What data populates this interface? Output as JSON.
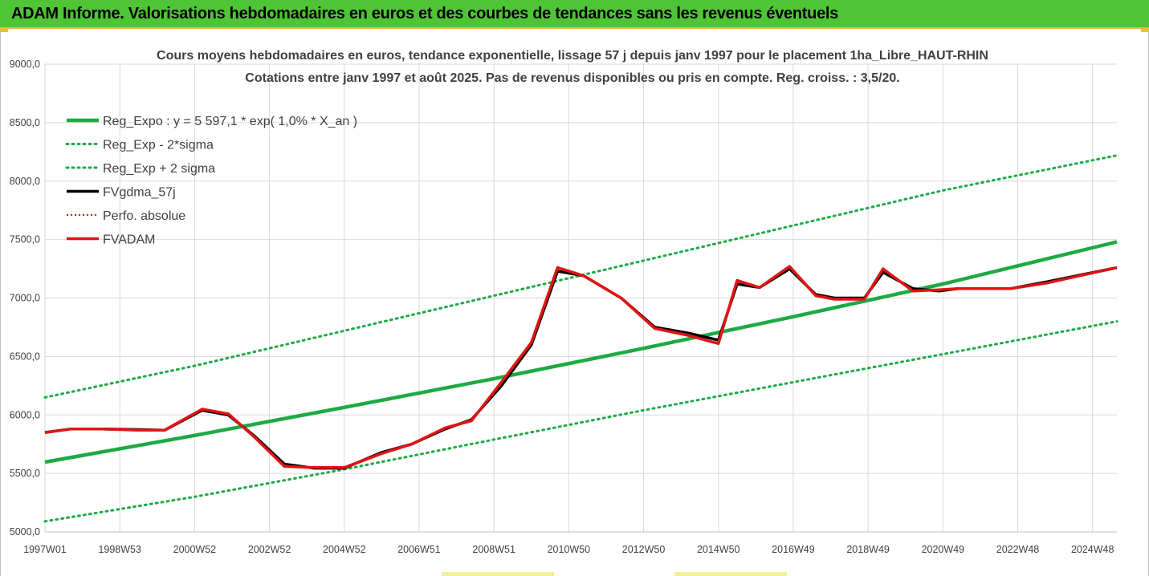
{
  "header": {
    "title": "ADAM Informe. Valorisations hebdomadaires en euros et des courbes de tendances sans les revenus éventuels"
  },
  "colors": {
    "banner": "#4fc436",
    "trend": "#1daa45",
    "sigma": "#1daa45",
    "fvgdma": "#000000",
    "perfo": "#ff0000",
    "fvadam": "#e01414",
    "grid": "#d9d9d9"
  },
  "chart_data": {
    "type": "line",
    "title": "Cours moyens hebdomadaires en euros, tendance exponentielle, lissage 57 j depuis janv 1997 pour le placement 1ha_Libre_HAUT-RHIN",
    "subtitle": "Cotations entre janv 1997 et août 2025. Pas de revenus disponibles ou pris en compte. Reg. croiss. : 3,5/20.",
    "xlabel": "",
    "ylabel": "",
    "x_start": 1997.0,
    "x_end": 2025.65,
    "x_ticks": [
      {
        "x": 1997.0,
        "label": "1997W01"
      },
      {
        "x": 1999.0,
        "label": "1998W53"
      },
      {
        "x": 2001.0,
        "label": "2000W52"
      },
      {
        "x": 2003.0,
        "label": "2002W52"
      },
      {
        "x": 2005.0,
        "label": "2004W52"
      },
      {
        "x": 2007.0,
        "label": "2006W51"
      },
      {
        "x": 2009.0,
        "label": "2008W51"
      },
      {
        "x": 2011.0,
        "label": "2010W50"
      },
      {
        "x": 2013.0,
        "label": "2012W50"
      },
      {
        "x": 2015.0,
        "label": "2014W50"
      },
      {
        "x": 2017.0,
        "label": "2016W49"
      },
      {
        "x": 2019.0,
        "label": "2018W49"
      },
      {
        "x": 2021.0,
        "label": "2020W49"
      },
      {
        "x": 2023.0,
        "label": "2022W48"
      },
      {
        "x": 2025.0,
        "label": "2024W48"
      }
    ],
    "y_ticks": [
      5000,
      5500,
      6000,
      6500,
      7000,
      7500,
      8000,
      8500,
      9000
    ],
    "y_tick_labels": [
      "5000,0",
      "5500,0",
      "6000,0",
      "6500,0",
      "7000,0",
      "7500,0",
      "8000,0",
      "8500,0",
      "9000,0"
    ],
    "ylim": [
      5000,
      9000
    ],
    "grid": true,
    "legend_position": "top-left",
    "legend": [
      {
        "key": "reg_expo",
        "label": "Reg_Expo : y = 5 597,1 * exp( 1,0% *  X_an )",
        "style": "solid-thick"
      },
      {
        "key": "reg_minus",
        "label": "Reg_Exp - 2*sigma",
        "style": "dotted"
      },
      {
        "key": "reg_plus",
        "label": "Reg_Exp + 2 sigma",
        "style": "dotted"
      },
      {
        "key": "fvgdma",
        "label": "FVgdma_57j",
        "style": "solid"
      },
      {
        "key": "perfo",
        "label": "Perfo. absolue",
        "style": "dotted"
      },
      {
        "key": "fvadam",
        "label": "FVADAM",
        "style": "solid-thick"
      }
    ],
    "series": [
      {
        "key": "reg_expo",
        "name": "Reg_Expo : y = 5 597,1 * exp( 1,0% *  X_an )",
        "x": [
          1997.0,
          2001.0,
          2005.0,
          2009.0,
          2013.0,
          2017.0,
          2021.0,
          2025.65
        ],
        "y": [
          5597,
          5825,
          6065,
          6310,
          6570,
          6840,
          7120,
          7480
        ]
      },
      {
        "key": "reg_minus",
        "name": "Reg_Exp - 2*sigma",
        "x": [
          1997.0,
          2001.0,
          2005.0,
          2009.0,
          2013.0,
          2017.0,
          2021.0,
          2025.65
        ],
        "y": [
          5090,
          5300,
          5535,
          5790,
          6040,
          6280,
          6520,
          6800
        ]
      },
      {
        "key": "reg_plus",
        "name": "Reg_Exp + 2 sigma",
        "x": [
          1997.0,
          2001.0,
          2005.0,
          2009.0,
          2013.0,
          2017.0,
          2021.0,
          2025.65
        ],
        "y": [
          6150,
          6420,
          6720,
          7020,
          7320,
          7620,
          7920,
          8220
        ]
      },
      {
        "key": "fvgdma",
        "name": "FVgdma_57j",
        "x": [
          1997.0,
          1997.7,
          1998.5,
          1999.5,
          2000.2,
          2001.2,
          2001.9,
          2002.6,
          2003.4,
          2004.2,
          2005.0,
          2006.0,
          2006.8,
          2007.7,
          2008.4,
          2009.2,
          2010.0,
          2010.7,
          2011.4,
          2012.4,
          2013.3,
          2014.2,
          2015.0,
          2015.5,
          2016.1,
          2016.9,
          2017.6,
          2018.1,
          2018.9,
          2019.4,
          2020.2,
          2020.9,
          2021.4,
          2022.0,
          2022.8,
          2023.8,
          2025.65
        ],
        "y": [
          5850,
          5880,
          5880,
          5875,
          5870,
          6040,
          6000,
          5820,
          5580,
          5545,
          5545,
          5680,
          5750,
          5880,
          5960,
          6250,
          6600,
          7230,
          7190,
          7000,
          6750,
          6700,
          6640,
          7120,
          7090,
          7250,
          7030,
          7000,
          7000,
          7220,
          7080,
          7060,
          7080,
          7080,
          7080,
          7140,
          7260
        ]
      },
      {
        "key": "perfo",
        "name": "Perfo. absolue",
        "x": [
          1997.0,
          1997.7,
          1998.5,
          1999.5,
          2000.2,
          2001.2,
          2001.9,
          2002.6,
          2003.4,
          2004.2,
          2005.0,
          2006.0,
          2006.8,
          2007.7,
          2008.4,
          2009.2,
          2010.0,
          2010.7,
          2011.4,
          2012.4,
          2013.3,
          2014.2,
          2015.0,
          2015.5,
          2016.1,
          2016.9,
          2017.6,
          2018.1,
          2018.9,
          2019.4,
          2020.2,
          2020.9,
          2021.4,
          2022.0,
          2022.8,
          2023.8,
          2025.65
        ],
        "y": [
          5850,
          5880,
          5880,
          5870,
          5870,
          6050,
          6010,
          5810,
          5560,
          5550,
          5550,
          5670,
          5750,
          5890,
          5950,
          6280,
          6620,
          7260,
          7190,
          7000,
          6740,
          6680,
          6610,
          7150,
          7090,
          7270,
          7020,
          6990,
          6990,
          7250,
          7060,
          7070,
          7080,
          7080,
          7080,
          7130,
          7260
        ]
      },
      {
        "key": "fvadam",
        "name": "FVADAM",
        "x": [
          1997.0,
          1997.7,
          1998.5,
          1999.5,
          2000.2,
          2001.2,
          2001.9,
          2002.6,
          2003.4,
          2004.2,
          2005.0,
          2006.0,
          2006.8,
          2007.7,
          2008.4,
          2009.2,
          2010.0,
          2010.7,
          2011.4,
          2012.4,
          2013.3,
          2014.2,
          2015.0,
          2015.5,
          2016.1,
          2016.9,
          2017.6,
          2018.1,
          2018.9,
          2019.4,
          2020.2,
          2020.9,
          2021.4,
          2022.0,
          2022.8,
          2023.8,
          2025.65
        ],
        "y": [
          5850,
          5880,
          5880,
          5870,
          5870,
          6050,
          6010,
          5810,
          5560,
          5550,
          5550,
          5670,
          5750,
          5890,
          5950,
          6280,
          6620,
          7260,
          7190,
          7000,
          6740,
          6680,
          6610,
          7150,
          7090,
          7270,
          7020,
          6990,
          6990,
          7250,
          7060,
          7070,
          7080,
          7080,
          7080,
          7130,
          7260
        ]
      }
    ]
  }
}
